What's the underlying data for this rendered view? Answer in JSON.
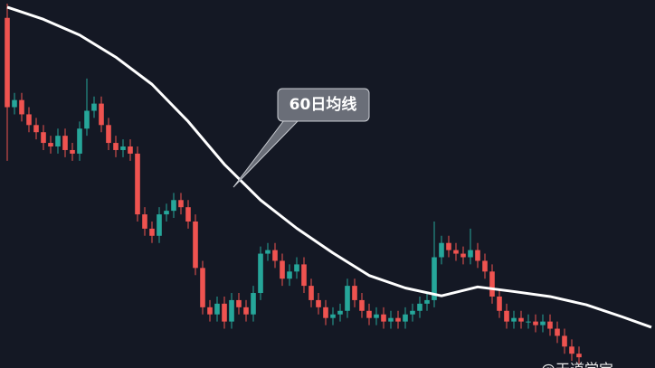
{
  "chart_data": {
    "type": "candlestick",
    "up_color": "#26a69a",
    "down_color": "#ef5350",
    "xlim": [
      -1,
      89.5
    ],
    "ylim": [
      -3,
      100
    ],
    "open": [
      95,
      70,
      72,
      68,
      65,
      63,
      60,
      59,
      62,
      58,
      57,
      64,
      69,
      71,
      65,
      60,
      58,
      59,
      57,
      40,
      36,
      34,
      40,
      41,
      44,
      42,
      38,
      25,
      14,
      12,
      15,
      10,
      16,
      14,
      12,
      18,
      29,
      30,
      27,
      22,
      24,
      26,
      20,
      16,
      14,
      11,
      12,
      13,
      20,
      16,
      13,
      11,
      12,
      10,
      11,
      10,
      12,
      13,
      15,
      16,
      28,
      32,
      30,
      29,
      28,
      30,
      27,
      24,
      17,
      13,
      10,
      11,
      10,
      10,
      9,
      10,
      8,
      6,
      3,
      1
    ],
    "high": [
      99,
      74,
      74,
      70,
      67,
      65,
      62,
      64,
      64,
      60,
      66,
      78,
      73,
      73,
      67,
      62,
      61,
      61,
      59,
      42,
      38,
      42,
      43,
      46,
      46,
      44,
      40,
      27,
      16,
      17,
      17,
      18,
      18,
      16,
      20,
      31,
      32,
      32,
      29,
      26,
      28,
      28,
      22,
      18,
      16,
      14,
      15,
      22,
      22,
      18,
      15,
      14,
      14,
      13,
      13,
      14,
      15,
      17,
      18,
      38,
      34,
      34,
      32,
      31,
      36,
      32,
      29,
      26,
      19,
      15,
      13,
      13,
      12,
      12,
      12,
      12,
      10,
      8,
      5,
      3
    ],
    "low": [
      55,
      68,
      66,
      63,
      61,
      58,
      57,
      57,
      56,
      55,
      55,
      62,
      67,
      63,
      58,
      56,
      56,
      55,
      38,
      34,
      32,
      32,
      38,
      39,
      40,
      36,
      23,
      12,
      10,
      10,
      8,
      8,
      12,
      10,
      10,
      16,
      27,
      25,
      20,
      20,
      22,
      18,
      14,
      12,
      9,
      9,
      10,
      11,
      14,
      11,
      9,
      9,
      8,
      8,
      8,
      8,
      10,
      11,
      13,
      14,
      26,
      28,
      27,
      26,
      26,
      25,
      22,
      15,
      11,
      8,
      8,
      8,
      8,
      7,
      7,
      6,
      4,
      1,
      -1,
      -2
    ],
    "close": [
      70,
      72,
      68,
      65,
      63,
      60,
      59,
      62,
      58,
      57,
      64,
      69,
      71,
      65,
      60,
      58,
      59,
      57,
      40,
      36,
      34,
      40,
      41,
      44,
      42,
      38,
      25,
      14,
      12,
      15,
      10,
      16,
      14,
      12,
      18,
      29,
      30,
      27,
      22,
      24,
      26,
      20,
      16,
      14,
      11,
      12,
      13,
      20,
      16,
      13,
      11,
      12,
      10,
      11,
      10,
      12,
      13,
      15,
      16,
      28,
      32,
      30,
      29,
      28,
      30,
      27,
      24,
      17,
      13,
      10,
      11,
      10,
      10,
      9,
      10,
      8,
      6,
      3,
      1,
      0
    ],
    "ma": {
      "color": "#ffffff",
      "x": [
        0,
        5,
        10,
        15,
        20,
        25,
        30,
        35,
        40,
        45,
        50,
        55,
        60,
        65,
        70,
        75,
        80,
        85,
        89
      ],
      "values": [
        98,
        94.6,
        90.2,
        84,
        76.4,
        66,
        54,
        44,
        36.1,
        29.2,
        22.9,
        19.4,
        17.2,
        19.7,
        18.4,
        17,
        14.7,
        11.3,
        8.4
      ]
    },
    "annotation": "60日均线",
    "watermark": "@天道学宝"
  }
}
